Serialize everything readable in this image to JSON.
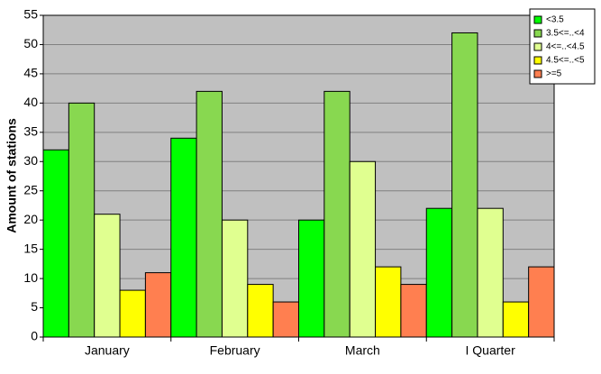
{
  "chart_data": {
    "type": "bar",
    "y_label": "Amount of stations",
    "categories": [
      "January",
      "February",
      "March",
      "I Quarter"
    ],
    "series": [
      {
        "name": "<3.5",
        "color": "#00ff00",
        "values": [
          32,
          34,
          20,
          22
        ]
      },
      {
        "name": "3.5<=..<4",
        "color": "#88d850",
        "values": [
          40,
          42,
          42,
          52
        ]
      },
      {
        "name": "4<=..<4.5",
        "color": "#e0ff90",
        "values": [
          21,
          20,
          30,
          22
        ]
      },
      {
        "name": "4.5<=..<5",
        "color": "#ffff00",
        "values": [
          8,
          9,
          12,
          6
        ]
      },
      {
        "name": ">=5",
        "color": "#ff7f50",
        "values": [
          11,
          6,
          9,
          12
        ]
      }
    ],
    "ylim": [
      0,
      55
    ],
    "yticks": [
      0,
      5,
      10,
      15,
      20,
      25,
      30,
      35,
      40,
      45,
      50,
      55
    ],
    "grid": true,
    "legend": "top-right",
    "plot_background": "#c0c0c0"
  }
}
